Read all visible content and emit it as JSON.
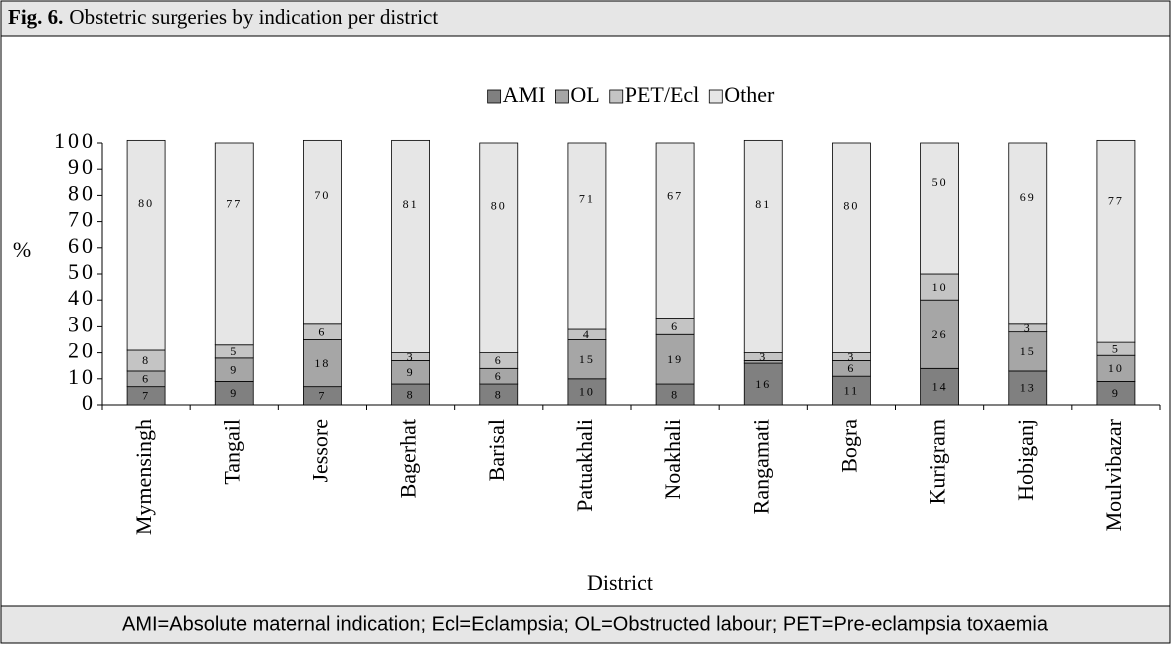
{
  "figure_label": "Fig. 6.",
  "chart_data": {
    "type": "stacked_bar",
    "title": "Obstetric surgeries by indication per district",
    "y_label": "%",
    "x_label": "District",
    "categories": [
      "Mymensingh",
      "Tangail",
      "Jessore",
      "Bagerhat",
      "Barisal",
      "Patuakhali",
      "Noakhali",
      "Rangamati",
      "Bogra",
      "Kurigram",
      "Hobiganj",
      "Moulvibazar"
    ],
    "series": [
      {
        "name": "AMI",
        "color": "#808080",
        "values": [
          7,
          9,
          7,
          8,
          8,
          10,
          8,
          16,
          11,
          14,
          13,
          9
        ]
      },
      {
        "name": "OL",
        "color": "#a6a6a6",
        "values": [
          6,
          9,
          18,
          9,
          6,
          15,
          19,
          1,
          6,
          26,
          15,
          10
        ],
        "value_labels": [
          "6",
          "9",
          "18",
          "9",
          "6",
          "15",
          "19",
          null,
          "6",
          "26",
          "15",
          "10"
        ]
      },
      {
        "name": "PET/Ecl",
        "color": "#c4c4c4",
        "values": [
          8,
          5,
          6,
          3,
          6,
          4,
          6,
          3,
          3,
          10,
          3,
          5
        ]
      },
      {
        "name": "Other",
        "color": "#e6e6e6",
        "values": [
          80,
          77,
          70,
          81,
          80,
          71,
          67,
          81,
          80,
          50,
          69,
          77
        ]
      }
    ],
    "ylim": [
      0,
      100
    ],
    "yticks": [
      0,
      10,
      20,
      30,
      40,
      50,
      60,
      70,
      80,
      90,
      100
    ],
    "legend": "top"
  },
  "footnote": "AMI=Absolute maternal indication; Ecl=Eclampsia; OL=Obstructed labour; PET=Pre-eclampsia toxaemia"
}
